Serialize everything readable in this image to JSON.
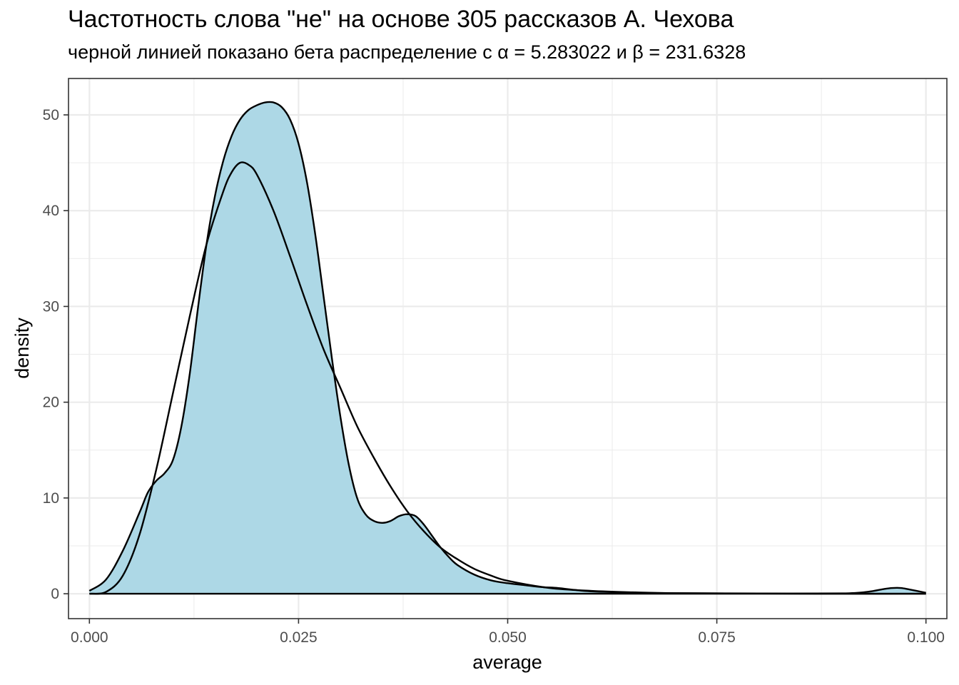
{
  "chart_data": {
    "type": "area",
    "title": "Частотность слова \"не\" на основе 305 рассказов А. Чехова",
    "subtitle": "черной линией показано бета распределение с α = 5.283022 и β = 231.6328",
    "xlabel": "average",
    "ylabel": "density",
    "xlim": [
      -0.0025,
      0.1025
    ],
    "ylim": [
      -2.6,
      53.8
    ],
    "x_ticks": [
      0.0,
      0.025,
      0.05,
      0.075,
      0.1
    ],
    "x_tick_labels": [
      "0.000",
      "0.025",
      "0.050",
      "0.075",
      "0.100"
    ],
    "y_ticks": [
      0,
      10,
      20,
      30,
      40,
      50
    ],
    "y_tick_labels": [
      "0",
      "10",
      "20",
      "30",
      "40",
      "50"
    ],
    "grid": true,
    "colors": {
      "fill": "#add8e6",
      "line": "#000000",
      "grid": "#ebebeb",
      "border": "#333333"
    },
    "series": [
      {
        "kind": "density-area",
        "x": [
          0.0,
          0.002,
          0.004,
          0.006,
          0.007,
          0.008,
          0.009,
          0.01,
          0.011,
          0.012,
          0.013,
          0.014,
          0.015,
          0.016,
          0.017,
          0.018,
          0.019,
          0.02,
          0.021,
          0.022,
          0.023,
          0.024,
          0.025,
          0.026,
          0.027,
          0.028,
          0.029,
          0.03,
          0.031,
          0.032,
          0.033,
          0.034,
          0.035,
          0.036,
          0.037,
          0.038,
          0.039,
          0.04,
          0.041,
          0.042,
          0.043,
          0.044,
          0.046,
          0.048,
          0.05,
          0.052,
          0.054,
          0.056,
          0.058,
          0.06,
          0.065,
          0.07,
          0.08,
          0.09,
          0.093,
          0.095,
          0.096,
          0.097,
          0.098,
          0.1
        ],
        "y": [
          0.3,
          1.5,
          4.5,
          8.5,
          10.6,
          11.8,
          12.6,
          14.0,
          17.5,
          23.0,
          30.0,
          36.5,
          41.5,
          45.2,
          47.8,
          49.5,
          50.5,
          51.0,
          51.3,
          51.3,
          50.8,
          49.5,
          47.0,
          43.0,
          37.5,
          31.0,
          24.5,
          18.5,
          13.5,
          10.0,
          8.3,
          7.6,
          7.4,
          7.6,
          8.1,
          8.3,
          8.1,
          7.2,
          6.0,
          4.8,
          3.8,
          3.0,
          2.0,
          1.4,
          1.1,
          0.9,
          0.7,
          0.6,
          0.4,
          0.25,
          0.12,
          0.06,
          0.03,
          0.04,
          0.2,
          0.5,
          0.6,
          0.6,
          0.45,
          0.1
        ]
      },
      {
        "kind": "beta-line",
        "name": "бета распределение",
        "x": [
          0.0,
          0.002,
          0.004,
          0.006,
          0.008,
          0.01,
          0.012,
          0.014,
          0.016,
          0.017,
          0.018,
          0.019,
          0.02,
          0.022,
          0.024,
          0.026,
          0.028,
          0.03,
          0.032,
          0.034,
          0.036,
          0.038,
          0.04,
          0.042,
          0.044,
          0.046,
          0.048,
          0.05,
          0.055,
          0.06,
          0.065,
          0.07,
          0.08,
          0.09,
          0.1
        ],
        "y": [
          0.0,
          0.2,
          1.9,
          6.2,
          13.0,
          21.0,
          29.0,
          36.5,
          42.0,
          44.0,
          45.0,
          44.8,
          43.8,
          40.0,
          35.2,
          30.2,
          25.5,
          21.5,
          17.5,
          14.2,
          11.2,
          8.6,
          6.5,
          4.8,
          3.6,
          2.6,
          1.9,
          1.35,
          0.6,
          0.3,
          0.15,
          0.06,
          0.02,
          0.0,
          0.0
        ]
      }
    ]
  }
}
